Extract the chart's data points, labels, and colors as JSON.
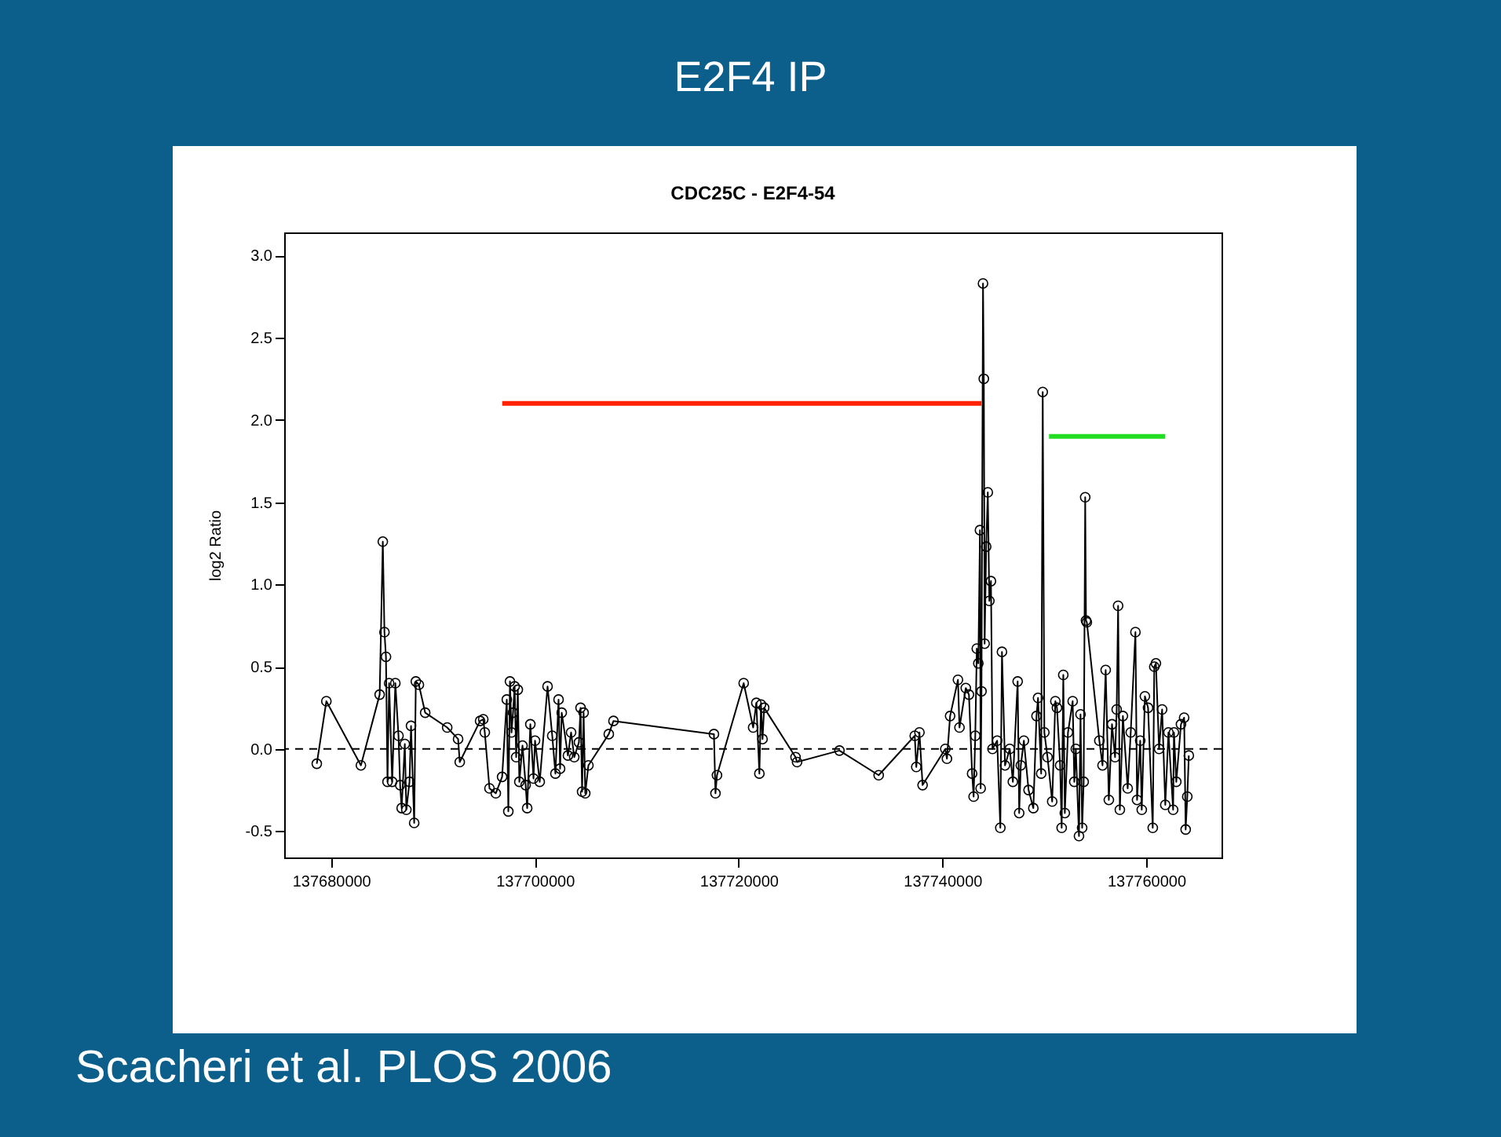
{
  "chart_data": {
    "type": "line",
    "title": "E2F4 IP",
    "subtitle": "CDC25C - E2F4-54",
    "ylabel": "log2 Ratio",
    "annotations": [
      "Scacheri et al. PLOS 2006"
    ],
    "xlim": [
      137675400,
      137767400
    ],
    "ylim": [
      -0.66,
      3.14
    ],
    "xticks": [
      137680000,
      137700000,
      137720000,
      137740000,
      137760000
    ],
    "yticks": [
      {
        "value": -0.5,
        "label": "-0.5"
      },
      {
        "value": 0,
        "label": "0.0"
      },
      {
        "value": 0.5,
        "label": "0.5"
      },
      {
        "value": 1,
        "label": "1.0"
      },
      {
        "value": 1.5,
        "label": "1.5"
      },
      {
        "value": 2,
        "label": "2.0"
      },
      {
        "value": 2.5,
        "label": "2.5"
      },
      {
        "value": 3,
        "label": "3.0"
      }
    ],
    "grid": false,
    "marker": "circle",
    "line_style": "solid",
    "ref_lines": [
      {
        "axis": "y",
        "value": 0,
        "line_style": "dashed",
        "color": "#000000"
      }
    ],
    "series": [
      {
        "color": "#000000",
        "x": [
          137678600,
          137679540,
          137682930,
          137684770,
          137685080,
          137685240,
          137685390,
          137685540,
          137685700,
          137686000,
          137686310,
          137686620,
          137686780,
          137686930,
          137687240,
          137687390,
          137687700,
          137687850,
          137688160,
          137688320,
          137688620,
          137689240,
          137691400,
          137692470,
          137692630,
          137694630,
          137694940,
          137695090,
          137695550,
          137696170,
          137696790,
          137697250,
          137697400,
          137697560,
          137697710,
          137697860,
          137698020,
          137698170,
          137698330,
          137698480,
          137698790,
          137699100,
          137699250,
          137699560,
          137699870,
          137700020,
          137700480,
          137701250,
          137701710,
          137702020,
          137702330,
          137702480,
          137702640,
          137703250,
          137703560,
          137703870,
          137704330,
          137704490,
          137704640,
          137704790,
          137704950,
          137705260,
          137707260,
          137707720,
          137717580,
          137717730,
          137717880,
          137720500,
          137721430,
          137721740,
          137722040,
          137722200,
          137722350,
          137722510,
          137725590,
          137725740,
          137729900,
          137733750,
          137737290,
          137737440,
          137737750,
          137738060,
          137740290,
          137740450,
          137740760,
          137741530,
          137741680,
          137742300,
          137742610,
          137742920,
          137743070,
          137743230,
          137743380,
          137743530,
          137743690,
          137743760,
          137743840,
          137743990,
          137744070,
          137744150,
          137744300,
          137744460,
          137744610,
          137744770,
          137744920,
          137745380,
          137745690,
          137745850,
          137746150,
          137746620,
          137746920,
          137747390,
          137747540,
          137747700,
          137748000,
          137748460,
          137748930,
          137749240,
          137749390,
          137749700,
          137749850,
          137750010,
          137750320,
          137750780,
          137751090,
          137751250,
          137751560,
          137751710,
          137751870,
          137752020,
          137752330,
          137752790,
          137752950,
          137753100,
          137753410,
          137753560,
          137753720,
          137753870,
          137754020,
          137754100,
          137754180,
          137755410,
          137755720,
          137756030,
          137756340,
          137756650,
          137756950,
          137757110,
          137757250,
          137757420,
          137757720,
          137758190,
          137758490,
          137758950,
          137759110,
          137759420,
          137759570,
          137759880,
          137760190,
          137760650,
          137760800,
          137760960,
          137761270,
          137761570,
          137761880,
          137762190,
          137762650,
          137762730,
          137762960,
          137763420,
          137763730,
          137763880,
          137764040,
          137764190
        ],
        "values": [
          -0.09,
          0.29,
          -0.1,
          0.33,
          1.26,
          0.71,
          0.56,
          -0.2,
          0.4,
          -0.2,
          0.4,
          0.08,
          -0.22,
          -0.36,
          0.03,
          -0.37,
          -0.2,
          0.14,
          -0.45,
          0.41,
          0.39,
          0.22,
          0.13,
          0.06,
          -0.08,
          0.17,
          0.18,
          0.1,
          -0.24,
          -0.27,
          -0.17,
          0.3,
          -0.38,
          0.41,
          0.1,
          0.22,
          0.38,
          -0.05,
          0.36,
          -0.2,
          0.02,
          -0.22,
          -0.36,
          0.15,
          -0.18,
          0.05,
          -0.2,
          0.38,
          0.08,
          -0.15,
          0.3,
          -0.12,
          0.22,
          -0.04,
          0.1,
          -0.05,
          0.04,
          0.25,
          -0.26,
          0.22,
          -0.27,
          -0.1,
          0.09,
          0.17,
          0.09,
          -0.27,
          -0.16,
          0.4,
          0.13,
          0.28,
          -0.15,
          0.27,
          0.06,
          0.25,
          -0.05,
          -0.08,
          -0.01,
          -0.16,
          0.08,
          -0.11,
          0.1,
          -0.22,
          0.0,
          -0.06,
          0.2,
          0.42,
          0.13,
          0.37,
          0.33,
          -0.15,
          -0.29,
          0.08,
          0.61,
          0.52,
          1.33,
          -0.24,
          0.35,
          2.83,
          2.25,
          0.64,
          1.23,
          1.56,
          0.9,
          1.02,
          0.0,
          0.05,
          -0.48,
          0.59,
          -0.1,
          0.0,
          -0.2,
          0.41,
          -0.39,
          -0.1,
          0.05,
          -0.25,
          -0.36,
          0.2,
          0.31,
          -0.15,
          2.17,
          0.1,
          -0.05,
          -0.32,
          0.29,
          0.25,
          -0.1,
          -0.48,
          0.45,
          -0.39,
          0.1,
          0.29,
          -0.2,
          0.0,
          -0.53,
          0.21,
          -0.48,
          -0.2,
          1.53,
          0.78,
          0.77,
          0.05,
          -0.1,
          0.48,
          -0.31,
          0.15,
          -0.05,
          0.24,
          0.87,
          -0.37,
          0.2,
          -0.24,
          0.1,
          0.71,
          -0.31,
          0.05,
          -0.37,
          0.32,
          0.25,
          -0.48,
          0.5,
          0.52,
          0.0,
          0.24,
          -0.34,
          0.1,
          -0.37,
          0.1,
          -0.2,
          0.15,
          0.19,
          -0.49,
          -0.29,
          -0.04
        ]
      },
      {
        "color": "#ff2200",
        "marker": "none",
        "x": [
          137696800,
          137743840
        ],
        "values": [
          2.1,
          2.1
        ]
      },
      {
        "color": "#22dd22",
        "marker": "none",
        "x": [
          137750470,
          137761880
        ],
        "values": [
          1.9,
          1.9
        ]
      }
    ]
  }
}
